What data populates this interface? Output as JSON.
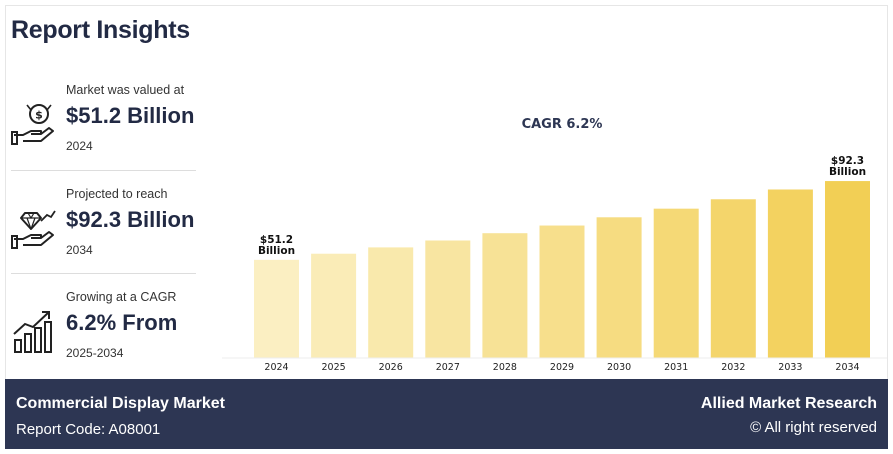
{
  "header": {
    "title": "Report Insights"
  },
  "stats": [
    {
      "label": "Market was valued at",
      "value": "$51.2 Billion",
      "sub": "2024",
      "icon": "money-hand-icon"
    },
    {
      "label": "Projected to reach",
      "value": "$92.3 Billion",
      "sub": "2034",
      "icon": "diamond-hand-icon"
    },
    {
      "label": "Growing at a CAGR",
      "value": "6.2% From",
      "sub": "2025-2034",
      "icon": "growth-chart-icon"
    }
  ],
  "chart_data": {
    "type": "bar",
    "title": "CAGR 6.2%",
    "categories": [
      "2024",
      "2025",
      "2026",
      "2027",
      "2028",
      "2029",
      "2030",
      "2031",
      "2032",
      "2033",
      "2034"
    ],
    "values": [
      51.2,
      54.4,
      57.7,
      61.3,
      65.1,
      69.1,
      73.4,
      77.9,
      82.8,
      87.9,
      92.3
    ],
    "ylim": [
      0,
      100
    ],
    "grid": false,
    "annotations": [
      {
        "category": "2024",
        "line1": "$51.2",
        "line2": "Billion"
      },
      {
        "category": "2034",
        "line1": "$92.3",
        "line2": "Billion"
      }
    ],
    "colors": {
      "start": "#fbefc2",
      "end": "#f2cf55"
    }
  },
  "footer": {
    "title": "Commercial Display Market",
    "code": "Report Code: A08001",
    "brand": "Allied Market Research",
    "rights": "© All right reserved"
  }
}
